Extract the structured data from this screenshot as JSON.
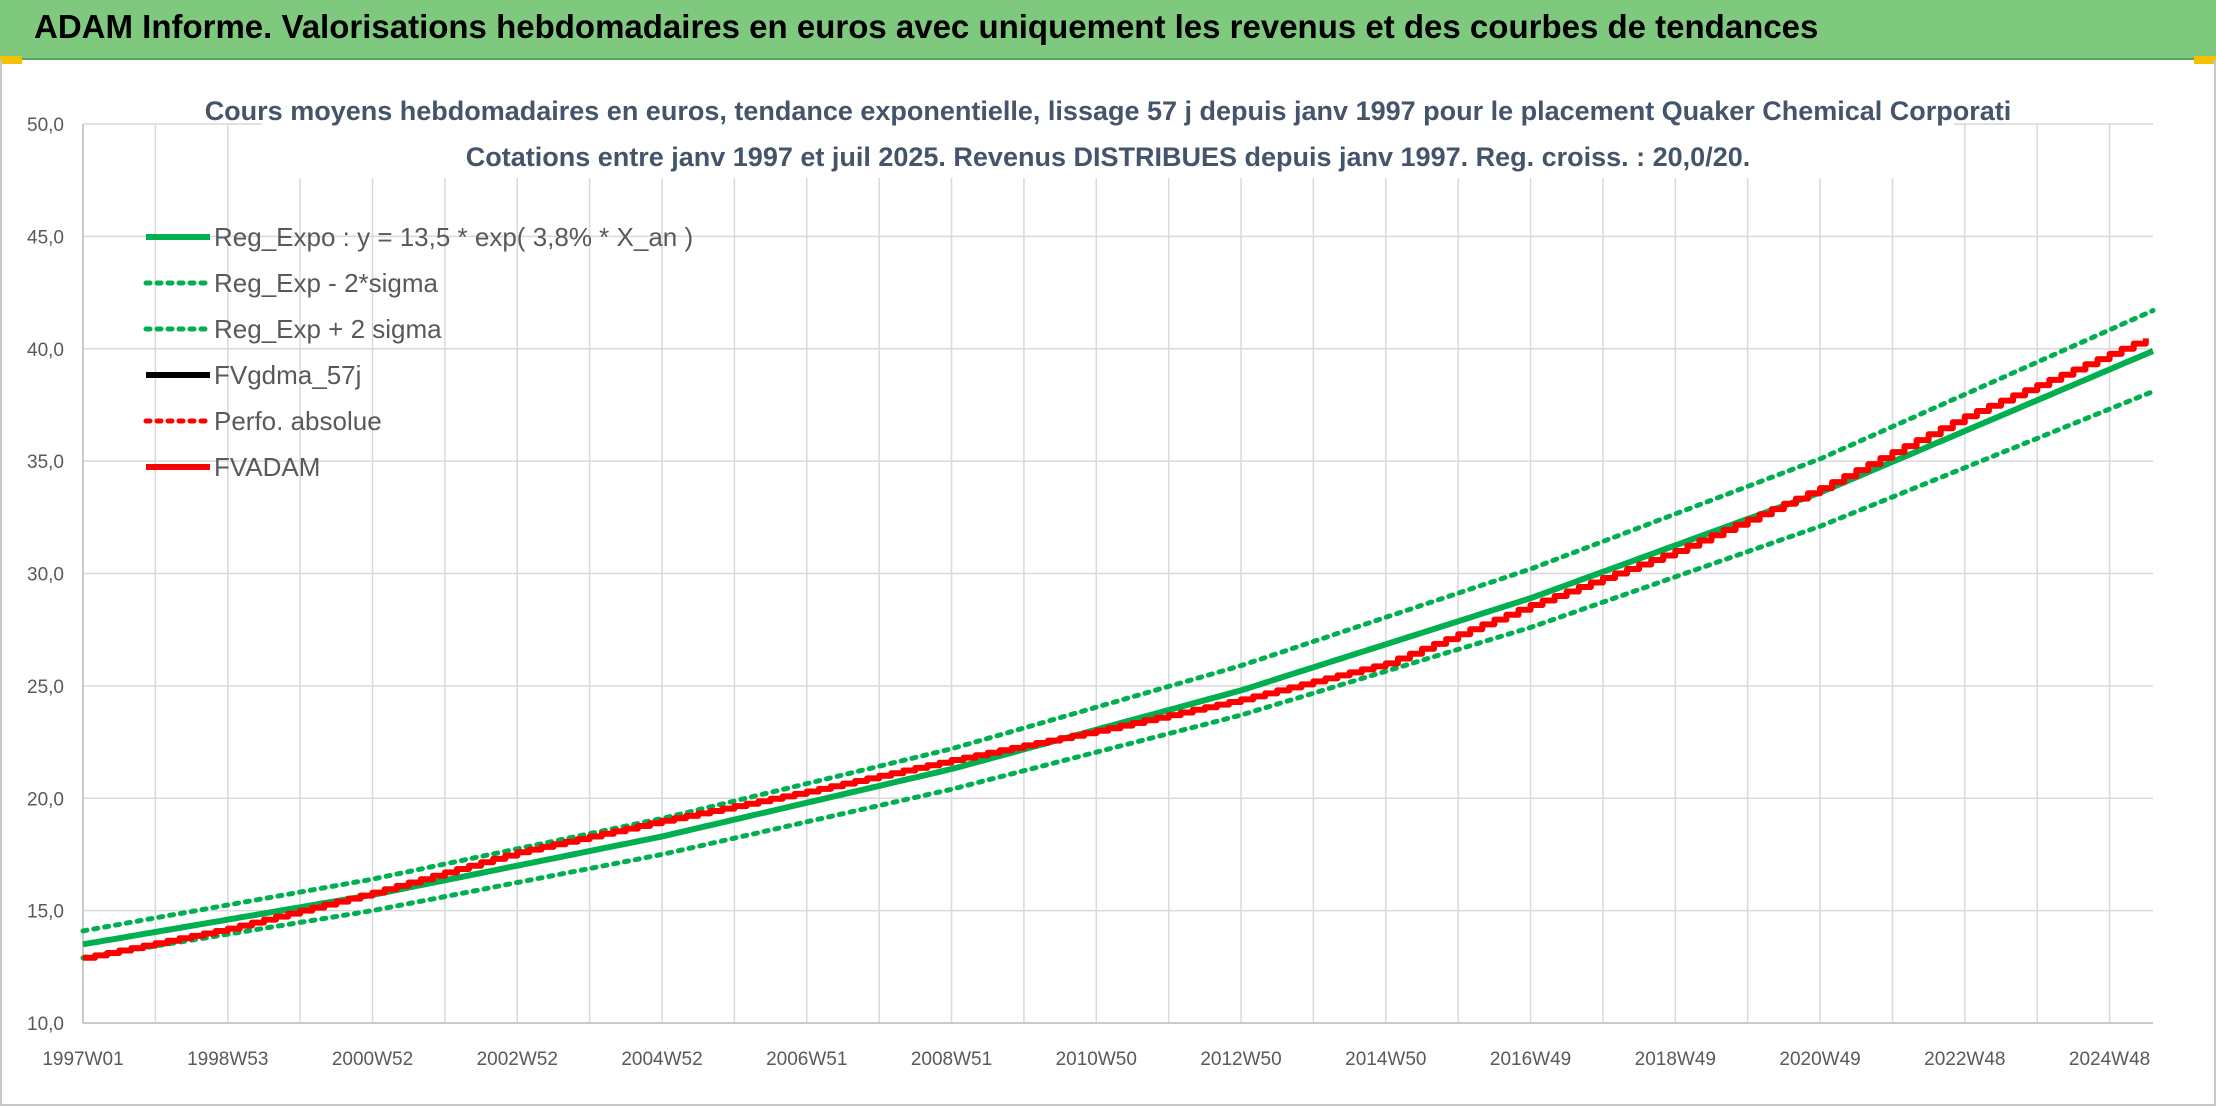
{
  "header": {
    "title": "ADAM Informe. Valorisations hebdomadaires en euros avec uniquement les revenus et des courbes de tendances"
  },
  "chart_data": {
    "type": "line",
    "title": "Cours moyens hebdomadaires en euros, tendance exponentielle, lissage 57 j depuis janv 1997 pour le placement Quaker Chemical Corporati",
    "subtitle": "Cotations entre janv 1997 et juil 2025. Revenus DISTRIBUES depuis janv 1997. Reg. croiss. : 20,0/20.",
    "x_tick_labels": [
      "1997W01",
      "1998W53",
      "2000W52",
      "2002W52",
      "2004W52",
      "2006W51",
      "2008W51",
      "2010W50",
      "2012W50",
      "2014W50",
      "2016W49",
      "2018W49",
      "2020W49",
      "2022W48",
      "2024W48"
    ],
    "x_tick_years": [
      1997.0,
      1999.0,
      2001.0,
      2003.0,
      2005.0,
      2007.0,
      2009.0,
      2011.0,
      2013.0,
      2015.0,
      2017.0,
      2019.0,
      2021.0,
      2023.0,
      2025.0
    ],
    "x_range": [
      1997.0,
      2025.6
    ],
    "y_tick_labels": [
      "10,0",
      "15,0",
      "20,0",
      "25,0",
      "30,0",
      "35,0",
      "40,0",
      "45,0",
      "50,0"
    ],
    "ylim": [
      10,
      50
    ],
    "grid": true,
    "legend_position": "top-left",
    "series": [
      {
        "name": "Reg_Expo : y = 13,5 * exp( 3,8% *  X_an )",
        "color": "#00b050",
        "style": "solid",
        "x": [
          1997.0,
          2001.0,
          2005.0,
          2009.0,
          2013.0,
          2017.0,
          2021.0,
          2025.6
        ],
        "values": [
          13.5,
          15.7,
          18.3,
          21.3,
          24.8,
          28.9,
          33.6,
          39.9
        ]
      },
      {
        "name": "Reg_Exp - 2*sigma",
        "color": "#00b050",
        "style": "dotted",
        "x": [
          1997.0,
          2001.0,
          2005.0,
          2009.0,
          2013.0,
          2017.0,
          2021.0,
          2025.6
        ],
        "values": [
          12.9,
          15.0,
          17.5,
          20.4,
          23.7,
          27.6,
          32.1,
          38.1
        ]
      },
      {
        "name": "Reg_Exp + 2 sigma",
        "color": "#00b050",
        "style": "dotted",
        "x": [
          1997.0,
          2001.0,
          2005.0,
          2009.0,
          2013.0,
          2017.0,
          2021.0,
          2025.6
        ],
        "values": [
          14.1,
          16.4,
          19.1,
          22.2,
          25.9,
          30.2,
          35.1,
          41.7
        ]
      },
      {
        "name": "FVgdma_57j",
        "color": "#000000",
        "style": "solid",
        "x": [],
        "values": []
      },
      {
        "name": "Perfo. absolue",
        "color": "#ff0000",
        "style": "dotted",
        "x": [],
        "values": []
      },
      {
        "name": "FVADAM",
        "color": "#ff0000",
        "style": "solid",
        "x": [
          1997.0,
          1999.0,
          2001.0,
          2003.0,
          2005.0,
          2007.0,
          2009.0,
          2011.0,
          2013.0,
          2015.0,
          2017.0,
          2019.0,
          2021.0,
          2023.0,
          2025.6
        ],
        "values": [
          12.9,
          14.2,
          15.8,
          17.6,
          19.0,
          20.3,
          21.7,
          23.0,
          24.4,
          26.0,
          28.6,
          31.0,
          33.8,
          37.0,
          40.6
        ]
      }
    ]
  }
}
